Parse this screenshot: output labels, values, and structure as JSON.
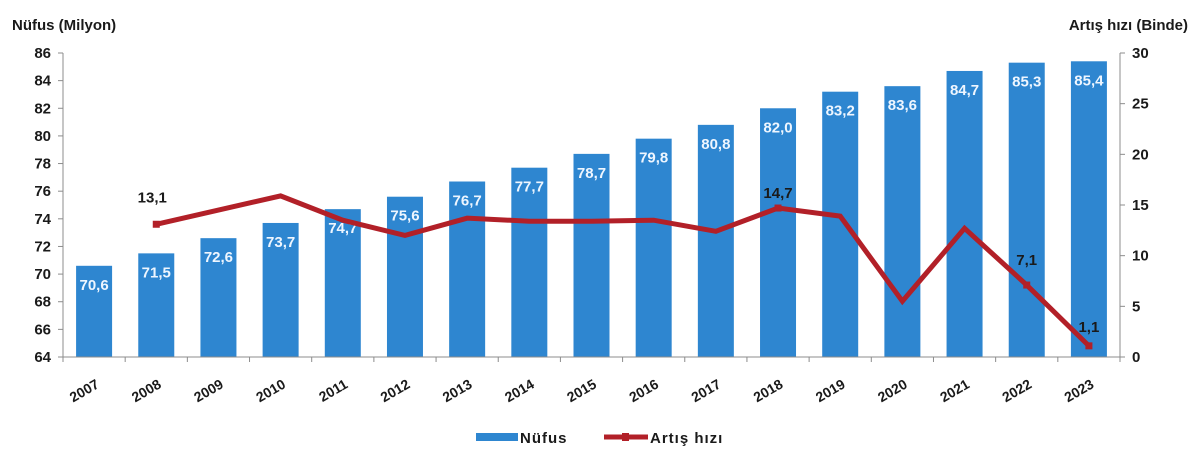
{
  "chart_data": {
    "type": "bar+line",
    "title": "",
    "categories": [
      "2007",
      "2008",
      "2009",
      "2010",
      "2011",
      "2012",
      "2013",
      "2014",
      "2015",
      "2016",
      "2017",
      "2018",
      "2019",
      "2020",
      "2021",
      "2022",
      "2023"
    ],
    "series": [
      {
        "name": "Nüfus",
        "type": "bar",
        "axis": "left",
        "color": "#2E86D0",
        "values": [
          70.6,
          71.5,
          72.6,
          73.7,
          74.7,
          75.6,
          76.7,
          77.7,
          78.7,
          79.8,
          80.8,
          82.0,
          83.2,
          83.6,
          84.7,
          85.3,
          85.4
        ],
        "labels": [
          "70,6",
          "71,5",
          "72,6",
          "73,7",
          "74,7",
          "75,6",
          "76,7",
          "77,7",
          "78,7",
          "79,8",
          "80,8",
          "82,0",
          "83,2",
          "83,6",
          "84,7",
          "85,3",
          "85,4"
        ]
      },
      {
        "name": "Artış hızı",
        "type": "line",
        "axis": "right",
        "color": "#B22028",
        "values": [
          null,
          13.1,
          14.5,
          15.9,
          13.5,
          12.0,
          13.7,
          13.4,
          13.4,
          13.5,
          12.4,
          14.7,
          13.9,
          5.5,
          12.7,
          7.1,
          1.1
        ],
        "labels": {
          "2008": "13,1",
          "2018": "14,7",
          "2022": "7,1",
          "2023": "1,1"
        }
      }
    ],
    "ylabel": "Nüfus (Milyon)",
    "ylim": [
      64,
      86
    ],
    "yticks": [
      64,
      66,
      68,
      70,
      72,
      74,
      76,
      78,
      80,
      82,
      84,
      86
    ],
    "y2label": "Artış hızı (Binde)",
    "y2lim": [
      0,
      30
    ],
    "y2ticks": [
      0,
      5,
      10,
      15,
      20,
      25,
      30
    ],
    "grid": false,
    "legend_position": "bottom"
  },
  "legend": [
    {
      "label": "Nüfus",
      "kind": "bar",
      "color": "#2E86D0"
    },
    {
      "label": "Artış hızı",
      "kind": "line",
      "color": "#B22028"
    }
  ]
}
